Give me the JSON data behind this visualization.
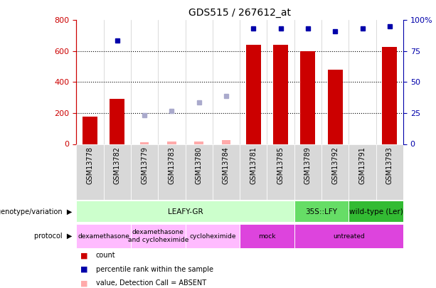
{
  "title": "GDS515 / 267612_at",
  "samples": [
    "GSM13778",
    "GSM13782",
    "GSM13779",
    "GSM13783",
    "GSM13780",
    "GSM13784",
    "GSM13781",
    "GSM13785",
    "GSM13789",
    "GSM13792",
    "GSM13791",
    "GSM13793"
  ],
  "count_values": [
    175,
    290,
    null,
    null,
    null,
    null,
    640,
    640,
    600,
    480,
    null,
    625
  ],
  "count_absent": [
    null,
    null,
    10,
    15,
    15,
    25,
    null,
    null,
    null,
    null,
    null,
    null
  ],
  "percentile_values": [
    null,
    670,
    null,
    null,
    null,
    null,
    748,
    748,
    748,
    728,
    748,
    758
  ],
  "percentile_absent": [
    null,
    null,
    185,
    215,
    270,
    310,
    null,
    null,
    null,
    null,
    null,
    null
  ],
  "ylim": [
    0,
    800
  ],
  "y2lim": [
    0,
    100
  ],
  "yticks": [
    0,
    200,
    400,
    600,
    800
  ],
  "y2ticks": [
    0,
    25,
    50,
    75,
    100
  ],
  "gridlines": [
    200,
    400,
    600
  ],
  "bar_color": "#cc0000",
  "dot_color": "#0000aa",
  "absent_bar_color": "#ffaaaa",
  "absent_dot_color": "#aaaacc",
  "genotype_groups": [
    {
      "label": "LEAFY-GR",
      "start": 0,
      "end": 8,
      "color": "#ccffcc"
    },
    {
      "label": "35S::LFY",
      "start": 8,
      "end": 10,
      "color": "#66dd66"
    },
    {
      "label": "wild-type (Ler)",
      "start": 10,
      "end": 12,
      "color": "#33bb33"
    }
  ],
  "protocol_groups": [
    {
      "label": "dexamethasone",
      "start": 0,
      "end": 2,
      "color": "#ffbbff"
    },
    {
      "label": "dexamethasone\nand cycloheximide",
      "start": 2,
      "end": 4,
      "color": "#ffbbff"
    },
    {
      "label": "cycloheximide",
      "start": 4,
      "end": 6,
      "color": "#ffbbff"
    },
    {
      "label": "mock",
      "start": 6,
      "end": 8,
      "color": "#dd44dd"
    },
    {
      "label": "untreated",
      "start": 8,
      "end": 12,
      "color": "#dd44dd"
    }
  ],
  "legend_items": [
    {
      "label": "count",
      "color": "#cc0000"
    },
    {
      "label": "percentile rank within the sample",
      "color": "#0000aa"
    },
    {
      "label": "value, Detection Call = ABSENT",
      "color": "#ffaaaa"
    },
    {
      "label": "rank, Detection Call = ABSENT",
      "color": "#aaaacc"
    }
  ],
  "left_label_geno": "genotype/variation",
  "left_label_proto": "protocol",
  "main_bg": "#ffffff",
  "tick_area_color": "#cccccc"
}
